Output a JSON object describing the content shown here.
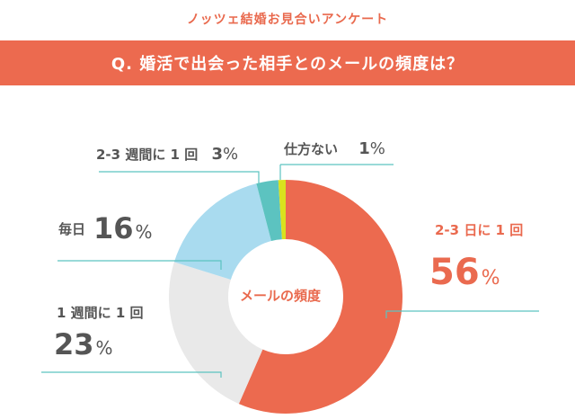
{
  "header": {
    "survey_title": "ノッツェ結婚お見合いアンケート",
    "question": "Q. 婚活で出会った相手とのメールの頻度は？"
  },
  "chart_data": {
    "type": "pie",
    "center_label": "メールの頻度",
    "slices": [
      {
        "label": "2-3日に1回",
        "value": 56,
        "color": "#ec6a4f"
      },
      {
        "label": "1週間に1回",
        "value": 23,
        "color": "#e9e9e9"
      },
      {
        "label": "毎日",
        "value": 16,
        "color": "#a9dbef"
      },
      {
        "label": "2-3週間に1回",
        "value": 3,
        "color": "#5cc3c0"
      },
      {
        "label": "仕方ない",
        "value": 1,
        "color": "#d9e21e"
      }
    ],
    "display": {
      "2_3_days": {
        "label": "2-3 日に 1 回",
        "value": "56",
        "unit": "%"
      },
      "1_week": {
        "label": "1 週間に 1 回",
        "value": "23",
        "unit": "%"
      },
      "daily": {
        "label": "毎日",
        "value": "16",
        "unit": "%"
      },
      "2_3_weeks": {
        "label": "2-3 週間に 1 回",
        "value": "3",
        "unit": "%"
      },
      "none": {
        "label": "仕方ない",
        "value": "1",
        "unit": "%"
      }
    }
  }
}
